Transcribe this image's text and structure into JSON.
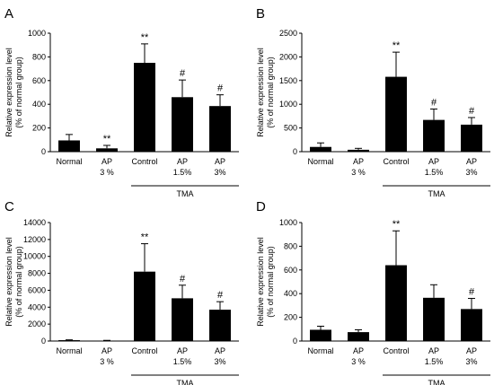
{
  "chart_data": [
    {
      "type": "bar",
      "panel_letter": "A",
      "ylabel": [
        "Relative expression level",
        "(% of normal group)"
      ],
      "ylim": [
        0,
        1000
      ],
      "yticks": [
        0,
        200,
        400,
        600,
        800,
        1000
      ],
      "categories": [
        [
          "Normal"
        ],
        [
          "AP",
          "3 %"
        ],
        [
          "Control"
        ],
        [
          "AP",
          "1.5%"
        ],
        [
          "AP",
          "3%"
        ]
      ],
      "values": [
        95,
        28,
        750,
        460,
        385
      ],
      "errors": [
        50,
        25,
        160,
        145,
        95
      ],
      "significance": [
        "",
        "**",
        "**",
        "#",
        "#"
      ],
      "group": {
        "label": "TMA",
        "from": 2,
        "to": 4
      },
      "grid": false
    },
    {
      "type": "bar",
      "panel_letter": "B",
      "ylabel": [
        "Relative expression level",
        "(% of normal group)"
      ],
      "ylim": [
        0,
        2500
      ],
      "yticks": [
        0,
        500,
        1000,
        1500,
        2000,
        2500
      ],
      "categories": [
        [
          "Normal"
        ],
        [
          "AP",
          "3 %"
        ],
        [
          "Control"
        ],
        [
          "AP",
          "1.5%"
        ],
        [
          "AP",
          "3%"
        ]
      ],
      "values": [
        100,
        40,
        1580,
        670,
        570
      ],
      "errors": [
        85,
        30,
        520,
        230,
        150
      ],
      "significance": [
        "",
        "",
        "**",
        "#",
        "#"
      ],
      "group": {
        "label": "TMA",
        "from": 2,
        "to": 4
      },
      "grid": false
    },
    {
      "type": "bar",
      "panel_letter": "C",
      "ylabel": [
        "Relative expression level",
        "(% of normal group)"
      ],
      "ylim": [
        0,
        14000
      ],
      "yticks": [
        0,
        2000,
        4000,
        6000,
        8000,
        10000,
        12000,
        14000
      ],
      "categories": [
        [
          "Normal"
        ],
        [
          "AP",
          "3 %"
        ],
        [
          "Control"
        ],
        [
          "AP",
          "1.5%"
        ],
        [
          "AP",
          "3%"
        ]
      ],
      "values": [
        100,
        50,
        8200,
        5050,
        3700
      ],
      "errors": [
        40,
        30,
        3300,
        1550,
        950
      ],
      "significance": [
        "",
        "",
        "**",
        "#",
        "#"
      ],
      "group": {
        "label": "TMA",
        "from": 2,
        "to": 4
      },
      "grid": false
    },
    {
      "type": "bar",
      "panel_letter": "D",
      "ylabel": [
        "Relative expression level",
        "(% of normal group)"
      ],
      "ylim": [
        0,
        1000
      ],
      "yticks": [
        0,
        200,
        400,
        600,
        800,
        1000
      ],
      "categories": [
        [
          "Normal"
        ],
        [
          "AP",
          "3 %"
        ],
        [
          "Control"
        ],
        [
          "AP",
          "1.5%"
        ],
        [
          "AP",
          "3%"
        ]
      ],
      "values": [
        95,
        75,
        640,
        365,
        270
      ],
      "errors": [
        30,
        20,
        290,
        110,
        90
      ],
      "significance": [
        "",
        "",
        "**",
        "",
        "#"
      ],
      "group": {
        "label": "TMA",
        "from": 2,
        "to": 4
      },
      "grid": false
    }
  ]
}
